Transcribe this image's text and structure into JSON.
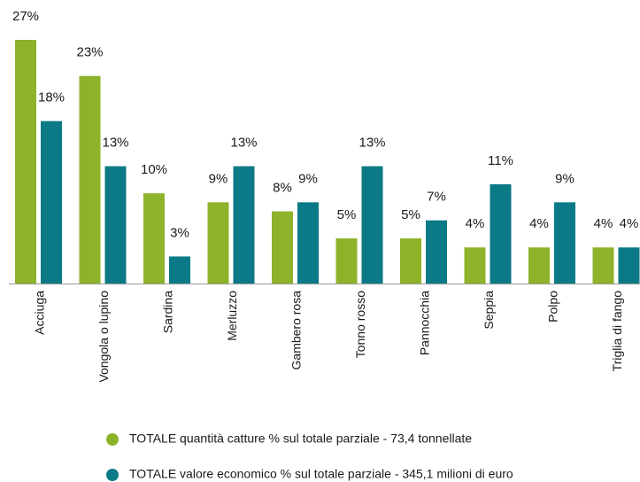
{
  "chart_data": {
    "type": "bar",
    "categories": [
      "Acciuga",
      "Vongola o lupino",
      "Sardina",
      "Merluzzo",
      "Gambero rosa",
      "Tonno rosso",
      "Pannocchia",
      "Seppia",
      "Polpo",
      "Triglia di fango"
    ],
    "series": [
      {
        "name": "TOTALE quantità catture % sul totale parziale - 73,4 tonnellate",
        "color": "#8db32a",
        "values": [
          27,
          23,
          10,
          9,
          8,
          5,
          5,
          4,
          4,
          4
        ],
        "value_labels": [
          "27%",
          "23%",
          "10%",
          "9%",
          "8%",
          "5%",
          "5%",
          "4%",
          "4%",
          "4%"
        ]
      },
      {
        "name": "TOTALE valore economico % sul totale parziale - 345,1 milioni di euro",
        "color": "#0b7a86",
        "values": [
          18,
          13,
          3,
          13,
          9,
          13,
          7,
          11,
          9,
          4
        ],
        "value_labels": [
          "18%",
          "13%",
          "3%",
          "13%",
          "9%",
          "13%",
          "7%",
          "11%",
          "9%",
          "4%"
        ]
      }
    ]
  }
}
